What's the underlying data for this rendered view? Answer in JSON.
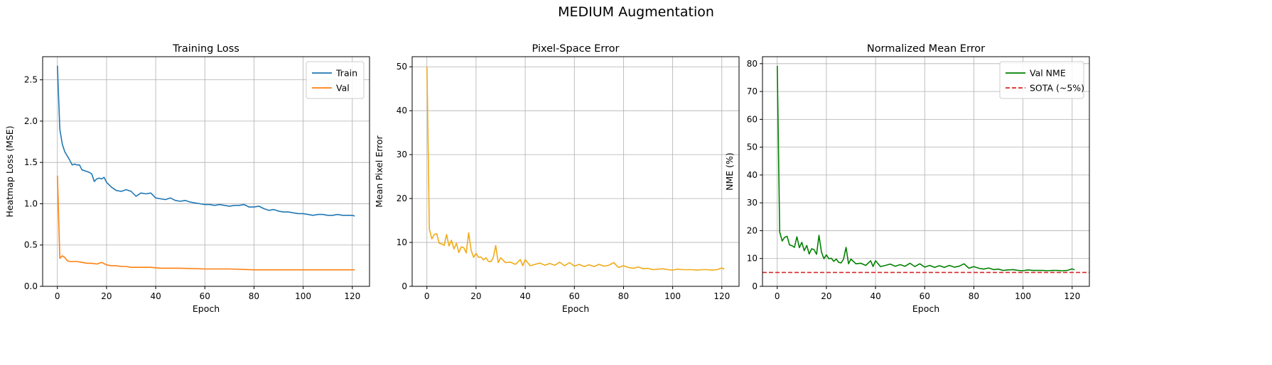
{
  "figure": {
    "suptitle": "MEDIUM Augmentation"
  },
  "chart_data": [
    {
      "type": "line",
      "title": "Training Loss",
      "xlabel": "Epoch",
      "ylabel": "Heatmap Loss (MSE)",
      "xlim": [
        -6,
        127
      ],
      "ylim": [
        0,
        2.78
      ],
      "xticks": [
        0,
        20,
        40,
        60,
        80,
        100,
        120
      ],
      "yticks": [
        0.0,
        0.5,
        1.0,
        1.5,
        2.0,
        2.5
      ],
      "ytick_decimals": 1,
      "grid": true,
      "legend": "top-right",
      "series": [
        {
          "name": "Train",
          "color": "#1f77b4",
          "x": [
            0,
            1,
            2,
            3,
            4,
            5,
            6,
            7,
            8,
            9,
            10,
            11,
            12,
            13,
            14,
            15,
            16,
            17,
            18,
            19,
            20,
            22,
            24,
            26,
            28,
            30,
            32,
            34,
            36,
            38,
            40,
            42,
            44,
            46,
            48,
            50,
            52,
            54,
            56,
            58,
            60,
            62,
            64,
            66,
            68,
            70,
            72,
            74,
            76,
            78,
            80,
            82,
            84,
            86,
            88,
            90,
            92,
            94,
            96,
            98,
            100,
            102,
            104,
            106,
            108,
            110,
            112,
            114,
            116,
            118,
            120,
            121
          ],
          "y": [
            2.67,
            1.9,
            1.72,
            1.63,
            1.58,
            1.53,
            1.47,
            1.48,
            1.47,
            1.47,
            1.41,
            1.4,
            1.39,
            1.38,
            1.36,
            1.27,
            1.3,
            1.31,
            1.3,
            1.32,
            1.26,
            1.2,
            1.16,
            1.15,
            1.17,
            1.15,
            1.09,
            1.13,
            1.12,
            1.13,
            1.07,
            1.06,
            1.05,
            1.07,
            1.04,
            1.03,
            1.04,
            1.02,
            1.01,
            1.0,
            0.99,
            0.99,
            0.98,
            0.99,
            0.98,
            0.97,
            0.98,
            0.98,
            0.99,
            0.96,
            0.96,
            0.97,
            0.94,
            0.92,
            0.93,
            0.91,
            0.9,
            0.9,
            0.89,
            0.88,
            0.88,
            0.87,
            0.86,
            0.87,
            0.87,
            0.86,
            0.86,
            0.87,
            0.86,
            0.86,
            0.86,
            0.85
          ]
        },
        {
          "name": "Val",
          "color": "#ff7f0e",
          "x": [
            0,
            1,
            2,
            3,
            4,
            5,
            6,
            8,
            10,
            12,
            14,
            16,
            18,
            20,
            22,
            24,
            26,
            28,
            30,
            34,
            38,
            42,
            46,
            50,
            60,
            70,
            80,
            90,
            100,
            110,
            121
          ],
          "y": [
            1.34,
            0.34,
            0.37,
            0.35,
            0.31,
            0.3,
            0.3,
            0.3,
            0.29,
            0.28,
            0.28,
            0.27,
            0.29,
            0.26,
            0.25,
            0.25,
            0.24,
            0.24,
            0.23,
            0.23,
            0.23,
            0.22,
            0.22,
            0.22,
            0.21,
            0.21,
            0.2,
            0.2,
            0.2,
            0.2,
            0.2
          ]
        }
      ]
    },
    {
      "type": "line",
      "title": "Pixel-Space Error",
      "xlabel": "Epoch",
      "ylabel": "Mean Pixel Error",
      "xlim": [
        -6,
        127
      ],
      "ylim": [
        0,
        52.3
      ],
      "xticks": [
        0,
        20,
        40,
        60,
        80,
        100,
        120
      ],
      "yticks": [
        0,
        10,
        20,
        30,
        40,
        50
      ],
      "ytick_decimals": 0,
      "grid": true,
      "legend": "none",
      "series": [
        {
          "name": "",
          "color": "#f0ab17",
          "x": [
            0,
            1,
            2,
            3,
            4,
            5,
            6,
            7,
            8,
            9,
            10,
            11,
            12,
            13,
            14,
            15,
            16,
            17,
            18,
            19,
            20,
            21,
            22,
            23,
            24,
            25,
            26,
            27,
            28,
            29,
            30,
            32,
            34,
            36,
            38,
            39,
            40,
            42,
            44,
            46,
            48,
            50,
            52,
            54,
            56,
            58,
            60,
            62,
            64,
            66,
            68,
            70,
            72,
            74,
            76,
            78,
            80,
            82,
            84,
            86,
            88,
            90,
            92,
            94,
            96,
            98,
            100,
            102,
            104,
            106,
            108,
            110,
            112,
            114,
            116,
            118,
            120,
            121
          ],
          "y": [
            50.0,
            13.0,
            10.8,
            11.8,
            12.0,
            9.8,
            9.7,
            9.3,
            11.8,
            9.2,
            10.5,
            8.5,
            9.8,
            7.7,
            9.0,
            8.8,
            7.6,
            12.2,
            8.2,
            6.6,
            7.5,
            6.6,
            6.7,
            6.0,
            6.5,
            5.7,
            5.6,
            6.5,
            9.3,
            5.4,
            6.5,
            5.4,
            5.5,
            5.0,
            6.1,
            4.7,
            6.1,
            4.7,
            5.0,
            5.3,
            4.8,
            5.2,
            4.8,
            5.5,
            4.7,
            5.4,
            4.6,
            5.0,
            4.5,
            4.9,
            4.5,
            5.0,
            4.6,
            4.8,
            5.4,
            4.3,
            4.7,
            4.3,
            4.1,
            4.4,
            4.0,
            4.1,
            3.8,
            3.9,
            4.0,
            3.8,
            3.7,
            3.9,
            3.8,
            3.8,
            3.8,
            3.7,
            3.8,
            3.8,
            3.7,
            3.8,
            4.2,
            3.9
          ]
        }
      ]
    },
    {
      "type": "line",
      "title": "Normalized Mean Error",
      "xlabel": "Epoch",
      "ylabel": "NME (%)",
      "xlim": [
        -6,
        127
      ],
      "ylim": [
        0,
        82.5
      ],
      "xticks": [
        0,
        20,
        40,
        60,
        80,
        100,
        120
      ],
      "yticks": [
        0,
        10,
        20,
        30,
        40,
        50,
        60,
        70,
        80
      ],
      "ytick_decimals": 0,
      "grid": true,
      "legend": "top-right",
      "series": [
        {
          "name": "Val NME",
          "color": "#008000",
          "x": [
            0,
            1,
            2,
            3,
            4,
            5,
            6,
            7,
            8,
            9,
            10,
            11,
            12,
            13,
            14,
            15,
            16,
            17,
            18,
            19,
            20,
            21,
            22,
            23,
            24,
            25,
            26,
            27,
            28,
            29,
            30,
            32,
            34,
            36,
            38,
            39,
            40,
            42,
            44,
            46,
            48,
            50,
            52,
            54,
            56,
            58,
            60,
            62,
            64,
            66,
            68,
            70,
            72,
            74,
            76,
            78,
            80,
            82,
            84,
            86,
            88,
            90,
            92,
            94,
            96,
            98,
            100,
            102,
            104,
            106,
            108,
            110,
            112,
            114,
            116,
            118,
            120,
            121
          ],
          "y": [
            79.2,
            19.5,
            16.3,
            17.6,
            18.0,
            14.9,
            14.6,
            14.0,
            17.8,
            13.9,
            15.8,
            12.8,
            14.7,
            11.6,
            13.5,
            13.2,
            11.5,
            18.3,
            12.3,
            9.9,
            11.3,
            9.9,
            10.1,
            9.0,
            9.8,
            8.6,
            8.4,
            9.8,
            14.0,
            8.1,
            9.8,
            8.1,
            8.3,
            7.5,
            9.2,
            7.1,
            9.2,
            7.1,
            7.5,
            8.0,
            7.2,
            7.8,
            7.2,
            8.3,
            7.1,
            8.1,
            6.9,
            7.5,
            6.8,
            7.4,
            6.8,
            7.5,
            6.9,
            7.2,
            8.1,
            6.5,
            7.1,
            6.5,
            6.2,
            6.6,
            6.0,
            6.2,
            5.7,
            5.9,
            6.0,
            5.7,
            5.6,
            5.9,
            5.7,
            5.7,
            5.7,
            5.6,
            5.7,
            5.7,
            5.6,
            5.7,
            6.3,
            5.9
          ]
        },
        {
          "name": "SOTA (~5%)",
          "color": "#d62728",
          "dashed": true,
          "x": [
            -6,
            127
          ],
          "y": [
            5,
            5
          ]
        }
      ]
    }
  ]
}
